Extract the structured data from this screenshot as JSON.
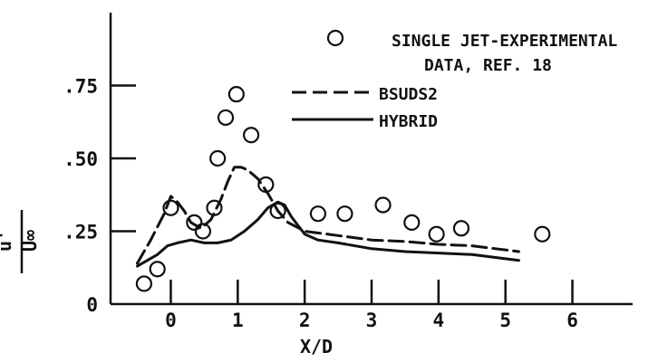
{
  "chart_data": {
    "type": "line",
    "title": "",
    "xlabel": "X/D",
    "ylabel_numerator": "u'",
    "ylabel_denominator": "U∞",
    "xlim": [
      -0.9,
      6.9
    ],
    "ylim": [
      0,
      1.0
    ],
    "x_ticks": [
      0,
      1,
      2,
      3,
      4,
      5,
      6
    ],
    "x_tick_labels": [
      "0",
      "1",
      "2",
      "3",
      "4",
      "5",
      "6"
    ],
    "y_ticks": [
      0,
      0.25,
      0.5,
      0.75
    ],
    "y_tick_labels": [
      "0",
      ".25",
      ".50",
      ".75"
    ],
    "grid": false,
    "legend_position": "top-right",
    "series": [
      {
        "name": "SINGLE JET-EXPERIMENTAL DATA, REF. 18",
        "style": "circles",
        "x": [
          -0.4,
          -0.2,
          0.0,
          0.35,
          0.48,
          0.65,
          0.7,
          0.82,
          0.98,
          1.2,
          1.42,
          1.6,
          2.2,
          2.6,
          3.17,
          3.6,
          3.97,
          4.34,
          5.55
        ],
        "y": [
          0.07,
          0.12,
          0.33,
          0.28,
          0.25,
          0.33,
          0.5,
          0.64,
          0.72,
          0.58,
          0.41,
          0.32,
          0.31,
          0.31,
          0.34,
          0.28,
          0.24,
          0.26,
          0.24
        ]
      },
      {
        "name": "BSUDS2",
        "style": "dashed",
        "x": [
          -0.5,
          -0.3,
          -0.1,
          0.0,
          0.1,
          0.2,
          0.3,
          0.45,
          0.6,
          0.75,
          0.85,
          0.95,
          1.05,
          1.15,
          1.3,
          1.45,
          1.6,
          1.75,
          2.0,
          2.5,
          3.0,
          3.5,
          4.0,
          4.5,
          5.2
        ],
        "y": [
          0.14,
          0.22,
          0.31,
          0.37,
          0.35,
          0.32,
          0.28,
          0.26,
          0.29,
          0.36,
          0.42,
          0.47,
          0.47,
          0.46,
          0.43,
          0.38,
          0.32,
          0.28,
          0.25,
          0.235,
          0.22,
          0.215,
          0.205,
          0.2,
          0.18
        ]
      },
      {
        "name": "HYBRID",
        "style": "solid",
        "x": [
          -0.5,
          -0.35,
          -0.2,
          -0.05,
          0.1,
          0.3,
          0.5,
          0.7,
          0.9,
          1.1,
          1.3,
          1.45,
          1.6,
          1.7,
          1.8,
          1.9,
          2.0,
          2.2,
          2.5,
          3.0,
          3.5,
          4.0,
          4.5,
          5.2
        ],
        "y": [
          0.13,
          0.15,
          0.17,
          0.2,
          0.21,
          0.22,
          0.21,
          0.21,
          0.22,
          0.25,
          0.29,
          0.33,
          0.35,
          0.34,
          0.3,
          0.27,
          0.24,
          0.22,
          0.21,
          0.19,
          0.18,
          0.175,
          0.17,
          0.15
        ]
      }
    ],
    "legend": {
      "circle_label_line1": "SINGLE JET-EXPERIMENTAL",
      "circle_label_line2": "DATA, REF. 18",
      "dashed_label": "BSUDS2",
      "solid_label": "HYBRID"
    }
  }
}
